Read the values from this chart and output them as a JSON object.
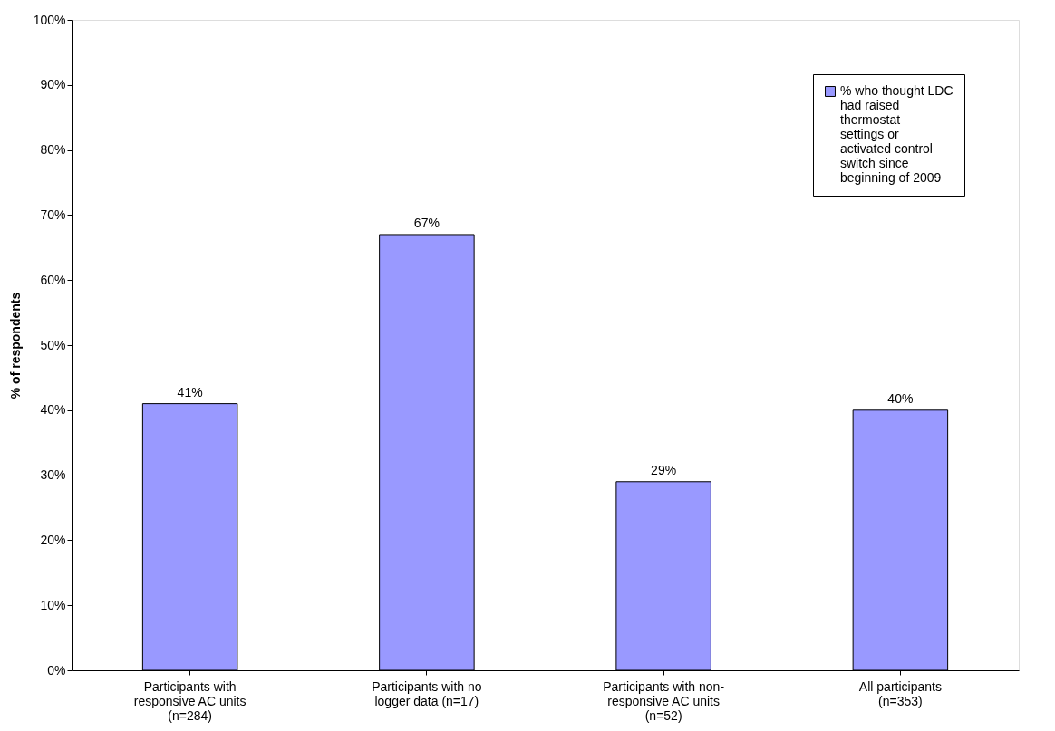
{
  "chart_data": {
    "type": "bar",
    "ylabel": "% of respondents",
    "categories": [
      "Participants with responsive AC units (n=284)",
      "Participants with no logger data (n=17)",
      "Participants with non-responsive AC units (n=52)",
      "All participants (n=353)"
    ],
    "series": [
      {
        "name": "% who thought LDC had raised thermostat settings or activated control switch since beginning of 2009",
        "color": "#9999ff",
        "values": [
          41,
          67,
          29,
          40
        ],
        "value_labels": [
          "41%",
          "67%",
          "29%",
          "40%"
        ]
      }
    ],
    "ylim": [
      0,
      100
    ],
    "yticks": [
      {
        "value": 0,
        "label": "0%"
      },
      {
        "value": 10,
        "label": "10%"
      },
      {
        "value": 20,
        "label": "20%"
      },
      {
        "value": 30,
        "label": "30%"
      },
      {
        "value": 40,
        "label": "40%"
      },
      {
        "value": 50,
        "label": "50%"
      },
      {
        "value": 60,
        "label": "60%"
      },
      {
        "value": 70,
        "label": "70%"
      },
      {
        "value": 80,
        "label": "80%"
      },
      {
        "value": 90,
        "label": "90%"
      },
      {
        "value": 100,
        "label": "100%"
      }
    ],
    "grid": false,
    "legend": "top right"
  }
}
